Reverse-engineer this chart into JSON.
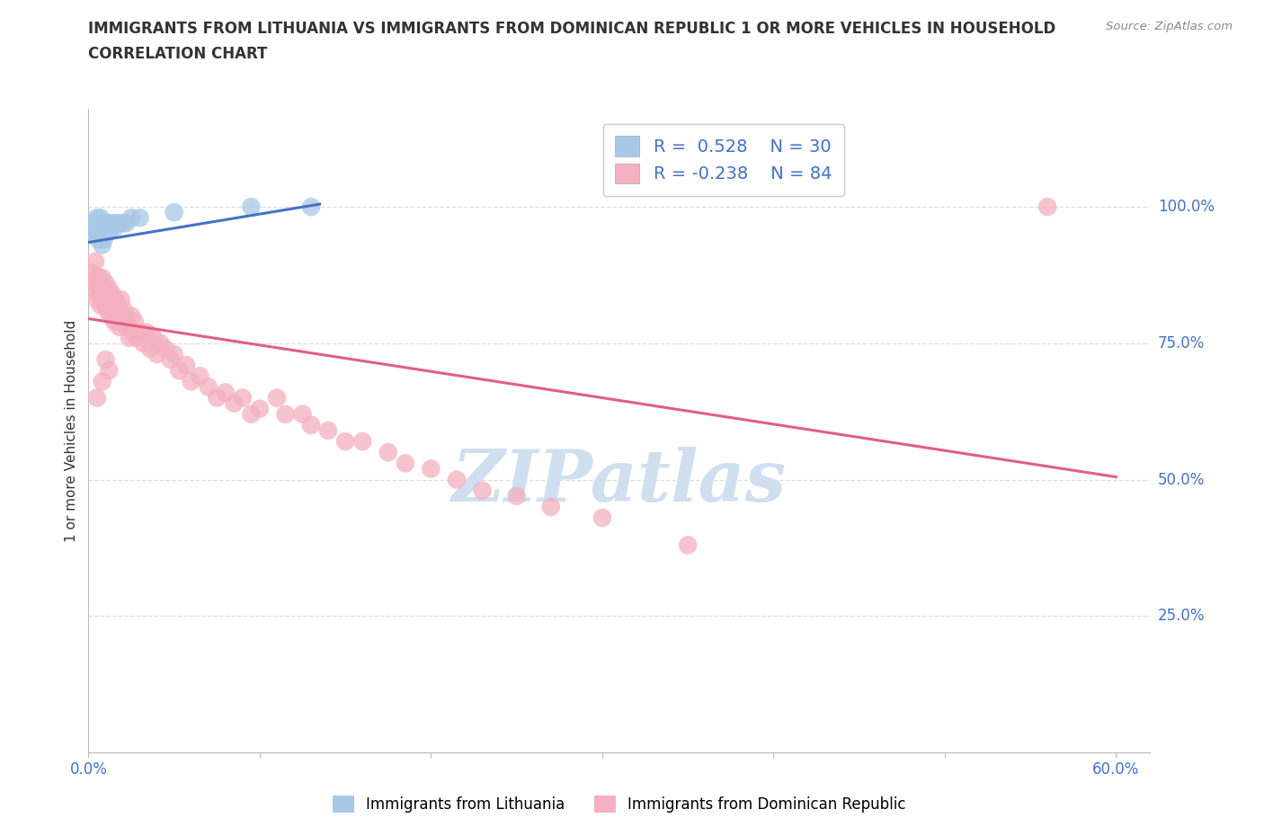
{
  "title_line1": "IMMIGRANTS FROM LITHUANIA VS IMMIGRANTS FROM DOMINICAN REPUBLIC 1 OR MORE VEHICLES IN HOUSEHOLD",
  "title_line2": "CORRELATION CHART",
  "source_text": "Source: ZipAtlas.com",
  "ylabel": "1 or more Vehicles in Household",
  "legend_label1": "Immigrants from Lithuania",
  "legend_label2": "Immigrants from Dominican Republic",
  "R1": 0.528,
  "N1": 30,
  "R2": -0.238,
  "N2": 84,
  "xlim": [
    0.0,
    0.62
  ],
  "ylim": [
    0.0,
    1.18
  ],
  "xticks": [
    0.0,
    0.1,
    0.2,
    0.3,
    0.4,
    0.5,
    0.6
  ],
  "xticklabels": [
    "0.0%",
    "",
    "",
    "",
    "",
    "",
    "60.0%"
  ],
  "yticks_right": [
    0.25,
    0.5,
    0.75,
    1.0
  ],
  "yticklabels_right": [
    "25.0%",
    "50.0%",
    "75.0%",
    "100.0%"
  ],
  "color_blue": "#a8c8e8",
  "color_pink": "#f4b0c0",
  "line_blue": "#4472c4",
  "line_pink": "#e06080",
  "watermark_color": "#d0dff0",
  "title_color": "#333333",
  "axis_label_color": "#333333",
  "tick_color": "#4472c4",
  "grid_color": "#dddddd",
  "blue_scatter_x": [
    0.002,
    0.003,
    0.004,
    0.004,
    0.005,
    0.005,
    0.006,
    0.006,
    0.007,
    0.007,
    0.008,
    0.008,
    0.009,
    0.009,
    0.01,
    0.01,
    0.011,
    0.012,
    0.013,
    0.014,
    0.015,
    0.016,
    0.018,
    0.02,
    0.022,
    0.025,
    0.03,
    0.05,
    0.095,
    0.13
  ],
  "blue_scatter_y": [
    0.97,
    0.96,
    0.97,
    0.95,
    0.98,
    0.96,
    0.97,
    0.94,
    0.98,
    0.95,
    0.97,
    0.93,
    0.96,
    0.94,
    0.97,
    0.95,
    0.96,
    0.97,
    0.96,
    0.97,
    0.96,
    0.97,
    0.97,
    0.97,
    0.97,
    0.98,
    0.98,
    0.99,
    1.0,
    1.0
  ],
  "pink_scatter_x": [
    0.002,
    0.003,
    0.004,
    0.004,
    0.005,
    0.005,
    0.006,
    0.006,
    0.007,
    0.007,
    0.008,
    0.008,
    0.009,
    0.009,
    0.01,
    0.01,
    0.011,
    0.011,
    0.012,
    0.012,
    0.013,
    0.013,
    0.014,
    0.014,
    0.015,
    0.015,
    0.016,
    0.016,
    0.017,
    0.017,
    0.018,
    0.018,
    0.019,
    0.02,
    0.021,
    0.022,
    0.023,
    0.024,
    0.025,
    0.026,
    0.027,
    0.028,
    0.03,
    0.032,
    0.034,
    0.036,
    0.038,
    0.04,
    0.042,
    0.045,
    0.048,
    0.05,
    0.053,
    0.057,
    0.06,
    0.065,
    0.07,
    0.075,
    0.08,
    0.085,
    0.09,
    0.095,
    0.1,
    0.11,
    0.115,
    0.125,
    0.13,
    0.14,
    0.15,
    0.16,
    0.175,
    0.185,
    0.2,
    0.215,
    0.23,
    0.25,
    0.27,
    0.3,
    0.35,
    0.56,
    0.005,
    0.008,
    0.01,
    0.012
  ],
  "pink_scatter_y": [
    0.88,
    0.85,
    0.9,
    0.87,
    0.86,
    0.83,
    0.87,
    0.84,
    0.85,
    0.82,
    0.87,
    0.84,
    0.85,
    0.82,
    0.86,
    0.83,
    0.84,
    0.81,
    0.85,
    0.82,
    0.83,
    0.8,
    0.84,
    0.81,
    0.82,
    0.79,
    0.83,
    0.8,
    0.82,
    0.79,
    0.81,
    0.78,
    0.83,
    0.8,
    0.81,
    0.78,
    0.79,
    0.76,
    0.8,
    0.77,
    0.79,
    0.76,
    0.77,
    0.75,
    0.77,
    0.74,
    0.76,
    0.73,
    0.75,
    0.74,
    0.72,
    0.73,
    0.7,
    0.71,
    0.68,
    0.69,
    0.67,
    0.65,
    0.66,
    0.64,
    0.65,
    0.62,
    0.63,
    0.65,
    0.62,
    0.62,
    0.6,
    0.59,
    0.57,
    0.57,
    0.55,
    0.53,
    0.52,
    0.5,
    0.48,
    0.47,
    0.45,
    0.43,
    0.38,
    1.0,
    0.65,
    0.68,
    0.72,
    0.7
  ],
  "blue_line_x": [
    0.0,
    0.135
  ],
  "blue_line_y": [
    0.935,
    1.005
  ],
  "pink_line_x": [
    0.0,
    0.6
  ],
  "pink_line_y": [
    0.795,
    0.505
  ]
}
